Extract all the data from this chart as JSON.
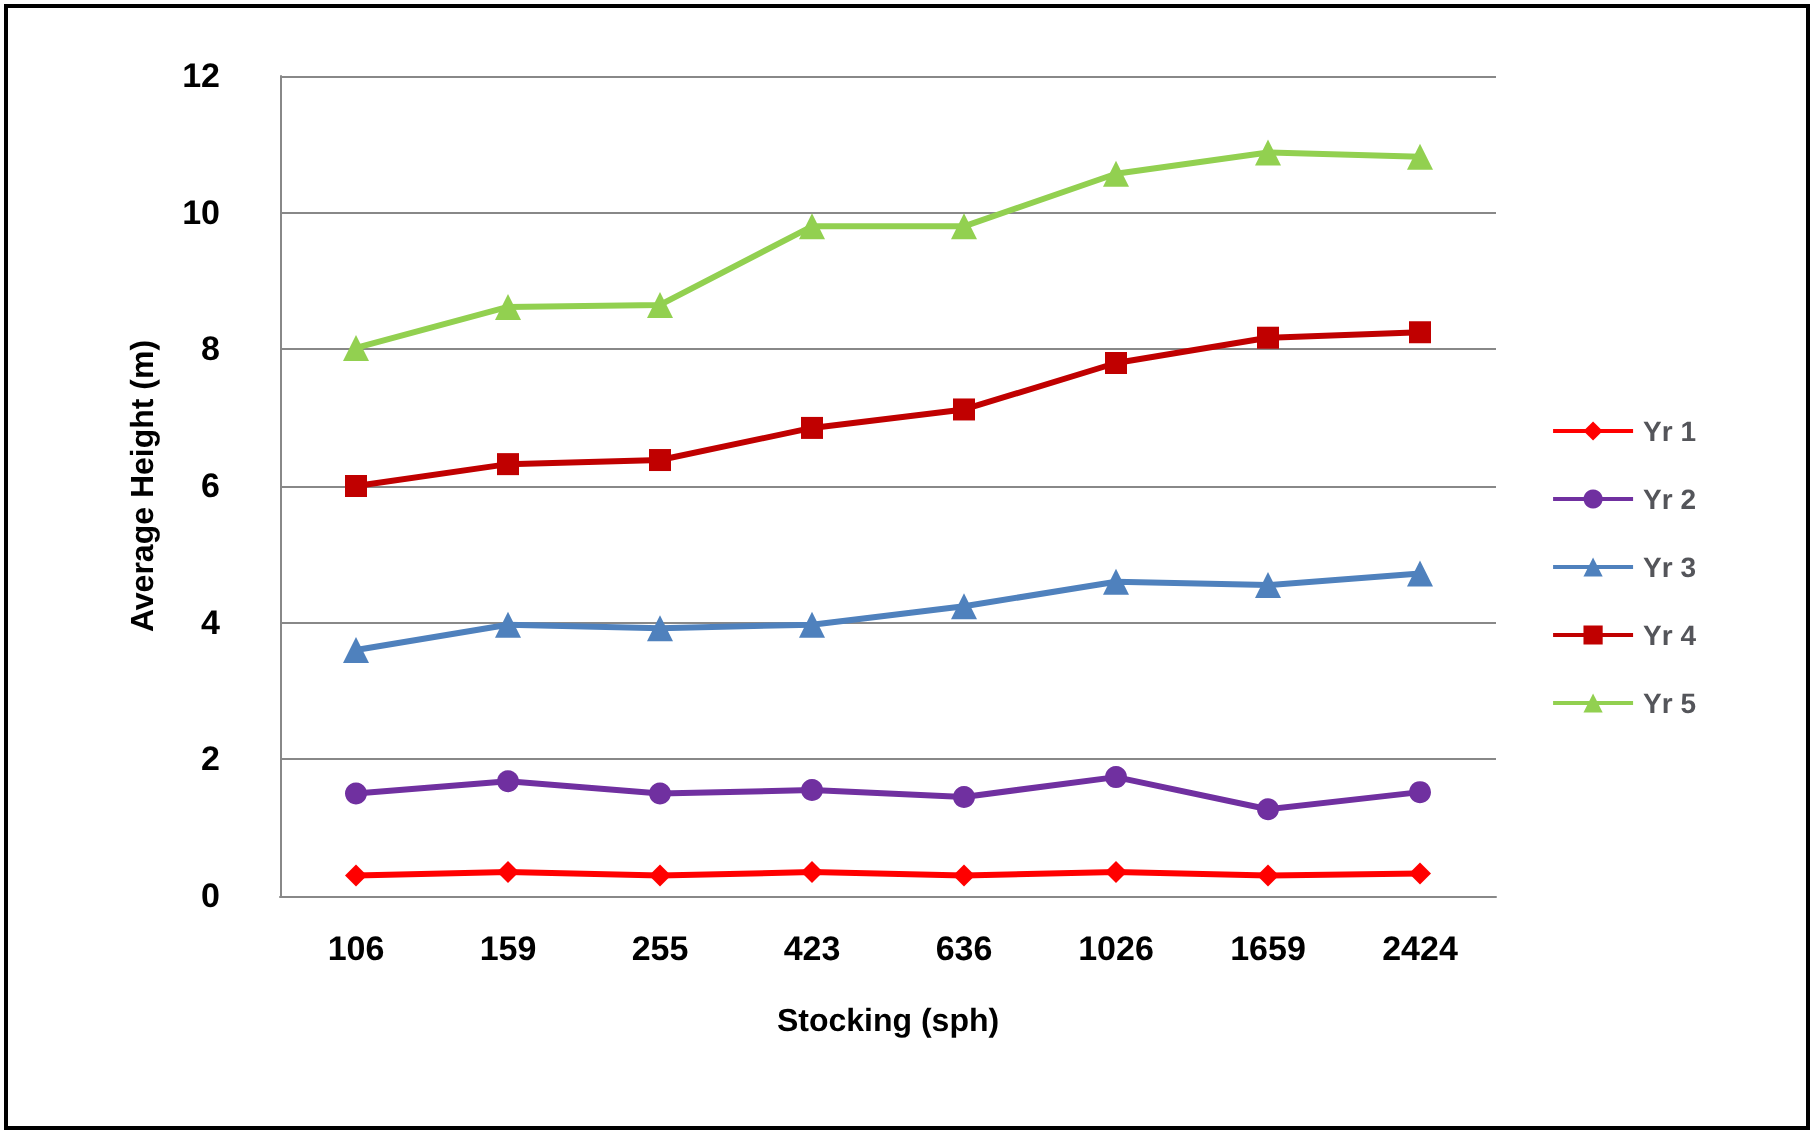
{
  "chart_data": {
    "type": "line",
    "xlabel": "Stocking (sph)",
    "ylabel": "Average Height (m)",
    "categories": [
      "106",
      "159",
      "255",
      "423",
      "636",
      "1026",
      "1659",
      "2424"
    ],
    "ylim": [
      0,
      12
    ],
    "yticks": [
      0,
      2,
      4,
      6,
      8,
      10,
      12
    ],
    "grid": "y",
    "legend": "right",
    "series": [
      {
        "name": "Yr 1",
        "color": "#ff0000",
        "marker": "diamond",
        "values": [
          0.3,
          0.35,
          0.3,
          0.35,
          0.3,
          0.35,
          0.3,
          0.33
        ]
      },
      {
        "name": "Yr 2",
        "color": "#7030a0",
        "marker": "circle",
        "values": [
          1.5,
          1.68,
          1.5,
          1.55,
          1.45,
          1.74,
          1.27,
          1.52
        ]
      },
      {
        "name": "Yr 3",
        "color": "#4f81bd",
        "marker": "triangle",
        "values": [
          3.6,
          3.97,
          3.92,
          3.97,
          4.24,
          4.6,
          4.55,
          4.72
        ]
      },
      {
        "name": "Yr 4",
        "color": "#c00000",
        "marker": "square",
        "values": [
          6.0,
          6.32,
          6.38,
          6.85,
          7.12,
          7.8,
          8.17,
          8.25
        ]
      },
      {
        "name": "Yr 5",
        "color": "#92d050",
        "marker": "triangle",
        "values": [
          8.02,
          8.62,
          8.65,
          9.8,
          9.8,
          10.57,
          10.88,
          10.82
        ]
      }
    ]
  }
}
